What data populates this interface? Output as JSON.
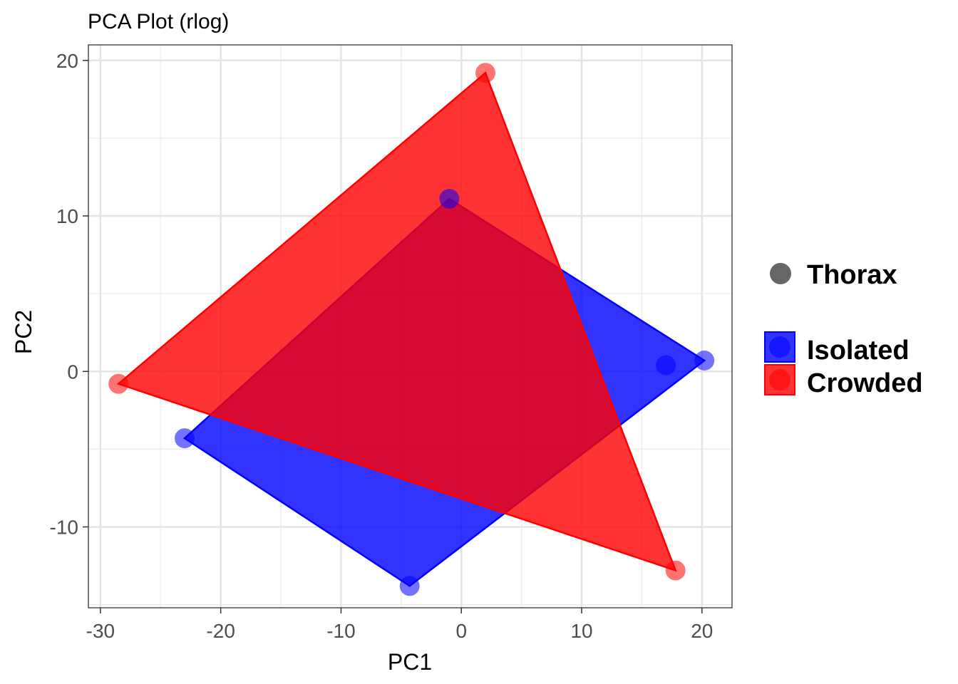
{
  "chart_data": {
    "type": "scatter",
    "title": "PCA Plot (rlog)",
    "xlabel": "PC1",
    "ylabel": "PC2",
    "xlim": [
      -31,
      22.5
    ],
    "ylim": [
      -15.2,
      21
    ],
    "x_ticks": [
      -30,
      -20,
      -10,
      0,
      10,
      20
    ],
    "y_ticks": [
      20,
      10,
      0,
      -10
    ],
    "x_tick_labels": [
      "-30",
      "-20",
      "-10",
      "0",
      "10",
      "20"
    ],
    "y_tick_labels": [
      "20",
      "10",
      "0",
      "-10"
    ],
    "grid": true,
    "legend_position": "right",
    "shape_legend": {
      "label": "Thorax",
      "color": "#666666"
    },
    "series": [
      {
        "name": "Isolated",
        "color": "#0000ff",
        "points": [
          {
            "x": -23.0,
            "y": -4.3
          },
          {
            "x": -4.3,
            "y": -13.8
          },
          {
            "x": 20.2,
            "y": 0.7
          },
          {
            "x": -1.0,
            "y": 11.1
          },
          {
            "x": 17.0,
            "y": 0.4
          }
        ],
        "hull": [
          {
            "x": -23.0,
            "y": -4.3
          },
          {
            "x": -4.3,
            "y": -13.8
          },
          {
            "x": 20.2,
            "y": 0.7
          },
          {
            "x": -1.0,
            "y": 11.1
          }
        ]
      },
      {
        "name": "Crowded",
        "color": "#ff0000",
        "points": [
          {
            "x": -28.5,
            "y": -0.8
          },
          {
            "x": 2.0,
            "y": 19.2
          },
          {
            "x": 17.8,
            "y": -12.8
          }
        ],
        "hull": [
          {
            "x": -28.5,
            "y": -0.8
          },
          {
            "x": 2.0,
            "y": 19.2
          },
          {
            "x": 17.8,
            "y": -12.8
          }
        ]
      }
    ]
  }
}
